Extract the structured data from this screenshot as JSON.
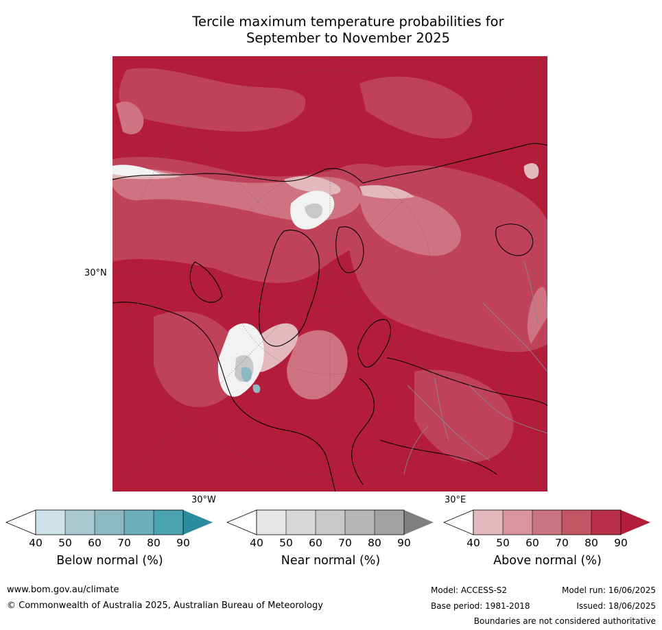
{
  "title_line1": "Tercile maximum temperature probabilities for",
  "title_line2": "September to November 2025",
  "map": {
    "background_color": "#b31d3a",
    "lat_label": "30°N",
    "lon_labels": [
      "30°W",
      "30°E"
    ]
  },
  "colorbars": [
    {
      "label": "Below normal (%)",
      "ticks": [
        "40",
        "50",
        "60",
        "70",
        "80",
        "90"
      ],
      "colors": [
        "#ffffff",
        "#cde3e8",
        "#a9c8cf",
        "#8cb9c1",
        "#6eaebb",
        "#4ba3b2",
        "#2b8ca0"
      ]
    },
    {
      "label": "Near normal (%)",
      "ticks": [
        "40",
        "50",
        "60",
        "70",
        "80",
        "90"
      ],
      "colors": [
        "#ffffff",
        "#e6e6e6",
        "#d7d7d7",
        "#c8c8c8",
        "#b6b6b6",
        "#a2a2a2",
        "#7f7f7f"
      ]
    },
    {
      "label": "Above normal (%)",
      "ticks": [
        "40",
        "50",
        "60",
        "70",
        "80",
        "90"
      ],
      "colors": [
        "#ffffff",
        "#e3b9bf",
        "#d8959f",
        "#cb737f",
        "#c35663",
        "#b92f47",
        "#b31d3a"
      ]
    }
  ],
  "footer": {
    "url": "www.bom.gov.au/climate",
    "copyright": "© Commonwealth of Australia 2025, Australian Bureau of Meteorology",
    "model": "Model: ACCESS-S2",
    "base_period": "Base period: 1981-2018",
    "model_run": "Model run: 16/06/2025",
    "issued": "Issued: 18/06/2025",
    "disclaimer": "Boundaries are not considered authoritative"
  }
}
